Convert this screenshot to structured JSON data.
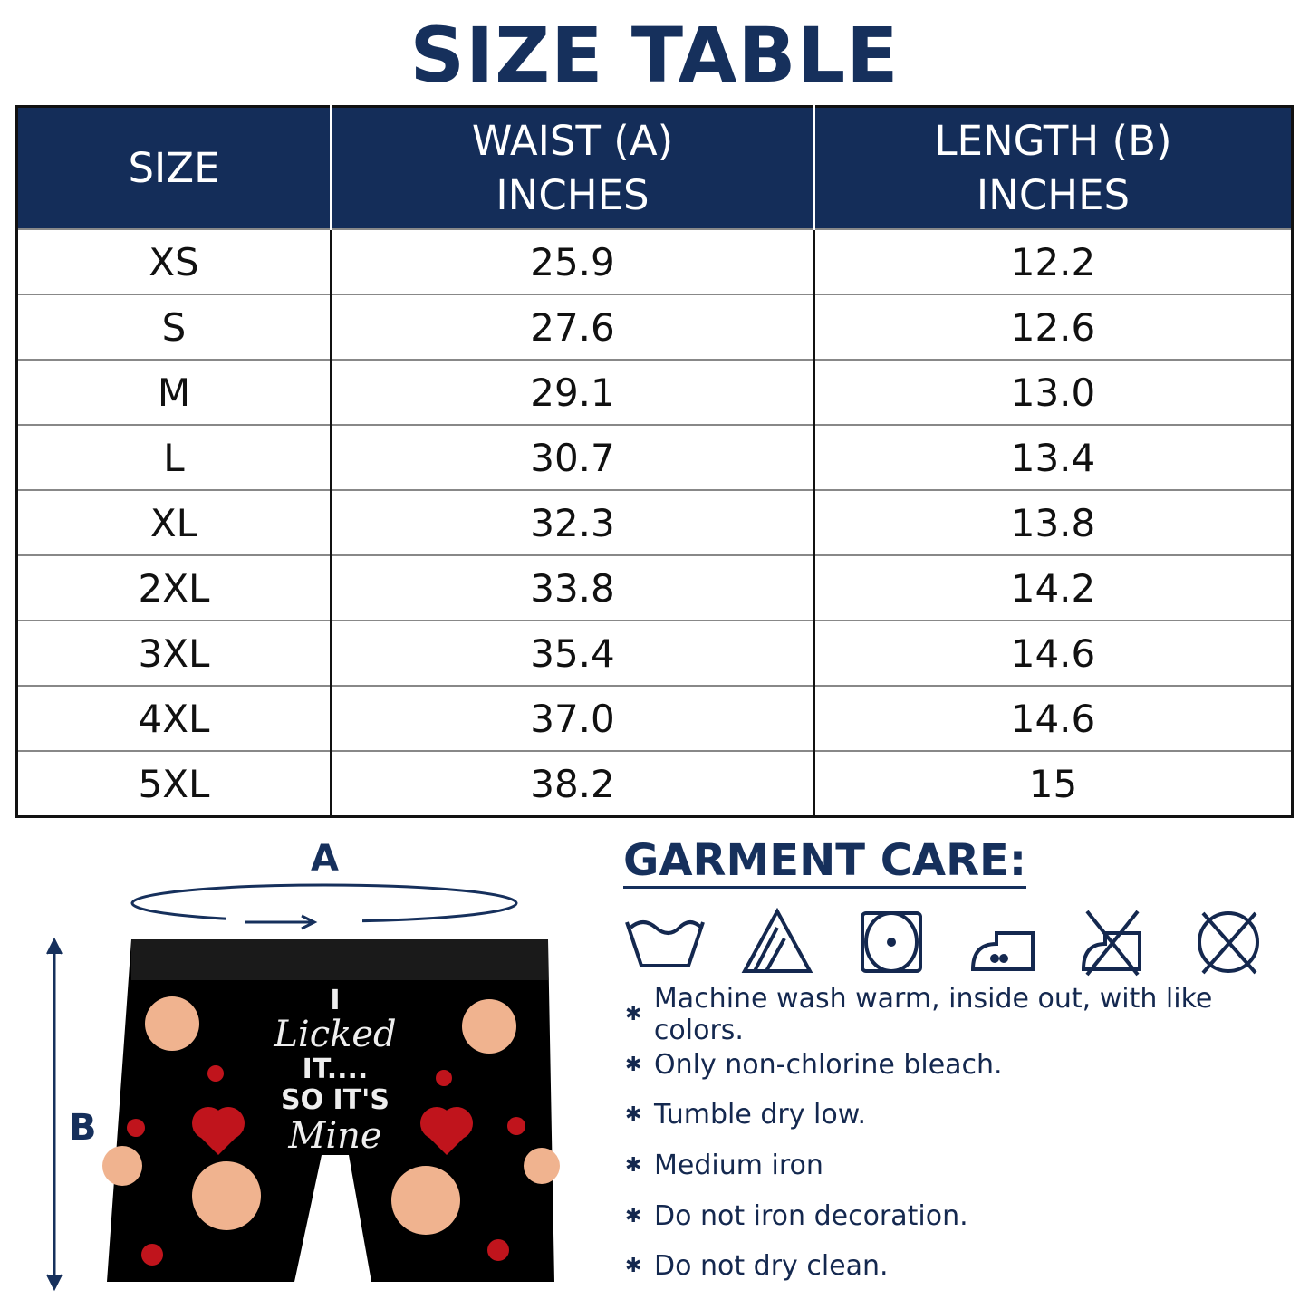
{
  "title": "SIZE TABLE",
  "table": {
    "headers": [
      [
        "SIZE"
      ],
      [
        "WAIST (A)",
        "INCHES"
      ],
      [
        "LENGTH (B)",
        "INCHES"
      ]
    ],
    "rows": [
      [
        "XS",
        "25.9",
        "12.2"
      ],
      [
        "S",
        "27.6",
        "12.6"
      ],
      [
        "M",
        "29.1",
        "13.0"
      ],
      [
        "L",
        "30.7",
        "13.4"
      ],
      [
        "XL",
        "32.3",
        "13.8"
      ],
      [
        "2XL",
        "33.8",
        "14.2"
      ],
      [
        "3XL",
        "35.4",
        "14.6"
      ],
      [
        "4XL",
        "37.0",
        "14.6"
      ],
      [
        "5XL",
        "38.2",
        "15"
      ]
    ]
  },
  "diagram": {
    "label_a": "A",
    "label_b": "B",
    "slogan": [
      "I",
      "Licked",
      "IT....",
      "SO IT'S",
      "Mine"
    ]
  },
  "care": {
    "heading": "GARMENT CARE:",
    "icons": [
      "wash-warm-icon",
      "non-chlorine-bleach-icon",
      "tumble-dry-low-icon",
      "medium-iron-icon",
      "do-not-iron-icon",
      "do-not-dry-clean-icon"
    ],
    "items": [
      "Machine wash warm, inside out, with like colors.",
      "Only non-chlorine bleach.",
      "Tumble dry low.",
      "Medium iron",
      "Do not iron decoration.",
      "Do not dry clean."
    ]
  },
  "colors": {
    "navy": "#142d59",
    "heart": "#c0141c"
  }
}
